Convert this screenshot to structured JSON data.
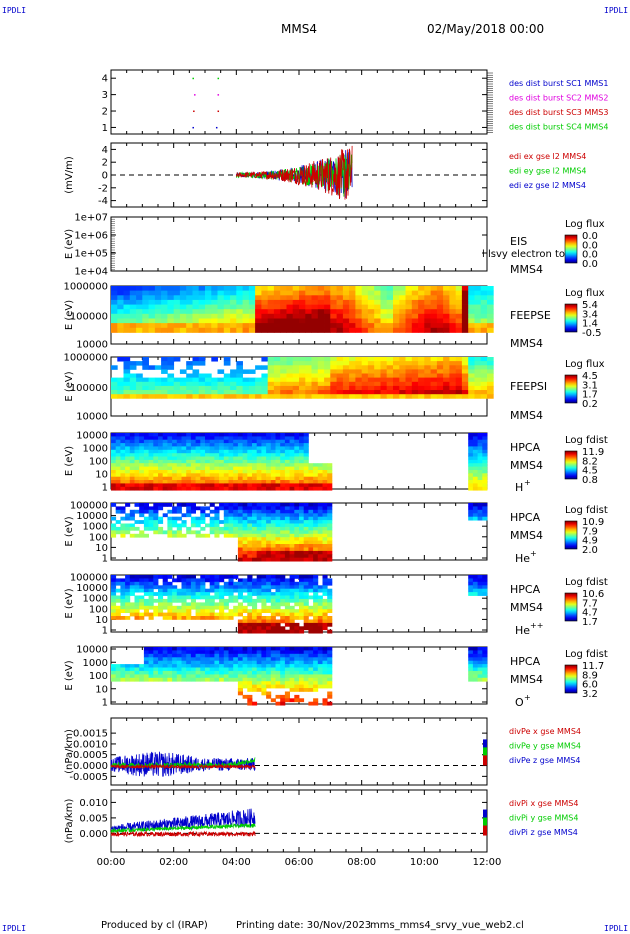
{
  "header": {
    "corner_left_top": "IPDLI",
    "corner_right_top": "IPDLI",
    "corner_left_bottom": "IPDLI",
    "corner_right_bottom": "IPDLI",
    "spacecraft": "MMS4",
    "datetime": "02/May/2018 00:00"
  },
  "footer": {
    "produced_by": "Produced by cl (IRAP)",
    "printing_date": "Printing date: 30/Nov/2023",
    "script_name": "mms_mms4_srvy_vue_web2.cl"
  },
  "colors": {
    "blue": "#0000ff",
    "red": "#e00000",
    "green": "#00cc00",
    "magenta": "#e000e0",
    "darkred": "#cc0000"
  },
  "chart_data": [
    {
      "id": "burst",
      "type": "line",
      "ylabel": "",
      "yticks": [
        "4",
        "3",
        "2",
        "1"
      ],
      "ylim": [
        0.6,
        4.5
      ],
      "legend": [
        {
          "label": "des dist burst SC1 MMS1",
          "color": "#0000cc"
        },
        {
          "label": "des dist burst SC2 MMS2",
          "color": "#e000e0"
        },
        {
          "label": "des dist burst SC3 MMS3",
          "color": "#cc0000"
        },
        {
          "label": "des dist burst SC4 MMS4",
          "color": "#00cc00"
        }
      ],
      "markers": [
        {
          "t": 2.6,
          "y": 4.0,
          "color": "#00cc00"
        },
        {
          "t": 2.65,
          "y": 3.0,
          "color": "#e000e0"
        },
        {
          "t": 2.62,
          "y": 2.0,
          "color": "#cc0000"
        },
        {
          "t": 2.6,
          "y": 1.0,
          "color": "#0000cc"
        },
        {
          "t": 3.4,
          "y": 4.0,
          "color": "#00cc00"
        },
        {
          "t": 3.4,
          "y": 3.0,
          "color": "#e000e0"
        },
        {
          "t": 3.4,
          "y": 2.0,
          "color": "#cc0000"
        },
        {
          "t": 3.35,
          "y": 1.0,
          "color": "#0000cc"
        }
      ]
    },
    {
      "id": "edi",
      "type": "line",
      "ylabel": "(mV/m)",
      "yticks": [
        "4",
        "2",
        "0",
        "-2",
        "-4"
      ],
      "ylim": [
        -5,
        5
      ],
      "legend": [
        {
          "label": "edi ex gse l2 MMS4",
          "color": "#cc0000"
        },
        {
          "label": "edi ey gse l2 MMS4",
          "color": "#00cc00"
        },
        {
          "label": "edi ez gse l2 MMS4",
          "color": "#0000cc"
        }
      ],
      "data_range_hours": [
        4.0,
        7.7
      ],
      "max_amplitude": 4.5
    },
    {
      "id": "eis",
      "type": "heatmap",
      "ylabel": "E (eV)",
      "yticks": [
        "1e+07",
        "1e+06",
        "1e+05",
        "1e+04"
      ],
      "side_labels": [
        "EIS",
        "MMS4"
      ],
      "overlay_text": "l lsvy electron to",
      "colorbar_label": "Log flux",
      "colorbar_values": [
        "0.0",
        "0.0",
        "0.0",
        "0.0"
      ]
    },
    {
      "id": "feepse",
      "type": "heatmap",
      "ylabel": "E (eV)",
      "yticks": [
        "1000000",
        "100000",
        "10000"
      ],
      "side_labels": [
        "FEEPSE",
        "MMS4"
      ],
      "colorbar_label": "Log flux",
      "colorbar_values": [
        "5.4",
        "3.4",
        "1.4",
        "-0.5"
      ]
    },
    {
      "id": "feepsi",
      "type": "heatmap",
      "ylabel": "E (eV)",
      "yticks": [
        "1000000",
        "100000",
        "10000"
      ],
      "side_labels": [
        "FEEPSI",
        "MMS4"
      ],
      "colorbar_label": "Log flux",
      "colorbar_values": [
        "4.5",
        "3.1",
        "1.7",
        "0.2"
      ]
    },
    {
      "id": "hpca_h",
      "type": "heatmap",
      "ylabel": "E (eV)",
      "yticks": [
        "10000",
        "1000",
        "100",
        "10",
        "1"
      ],
      "side_labels": [
        "HPCA",
        "MMS4"
      ],
      "species": "H",
      "species_sup": "+",
      "colorbar_label": "Log fdist",
      "colorbar_values": [
        "11.9",
        "8.2",
        "4.5",
        "0.8"
      ]
    },
    {
      "id": "hpca_he",
      "type": "heatmap",
      "ylabel": "E (eV)",
      "yticks": [
        "100000",
        "10000",
        "1000",
        "100",
        "10",
        "1"
      ],
      "side_labels": [
        "HPCA",
        "MMS4"
      ],
      "species": "He",
      "species_sup": "+",
      "colorbar_label": "Log fdist",
      "colorbar_values": [
        "10.9",
        "7.9",
        "4.9",
        "2.0"
      ]
    },
    {
      "id": "hpca_he2",
      "type": "heatmap",
      "ylabel": "E (eV)",
      "yticks": [
        "100000",
        "10000",
        "1000",
        "100",
        "10",
        "1"
      ],
      "side_labels": [
        "HPCA",
        "MMS4"
      ],
      "species": "He",
      "species_sup": "++",
      "colorbar_label": "Log fdist",
      "colorbar_values": [
        "10.6",
        "7.7",
        "4.7",
        "1.7"
      ]
    },
    {
      "id": "hpca_o",
      "type": "heatmap",
      "ylabel": "E (eV)",
      "yticks": [
        "10000",
        "1000",
        "100",
        "10",
        "1"
      ],
      "side_labels": [
        "HPCA",
        "MMS4"
      ],
      "species": "O",
      "species_sup": "+",
      "colorbar_label": "Log fdist",
      "colorbar_values": [
        "11.7",
        "8.9",
        "6.0",
        "3.2"
      ]
    },
    {
      "id": "divpe",
      "type": "line",
      "ylabel": "(nPa/km)",
      "yticks": [
        "0.0015",
        "0.0010",
        "0.0005",
        "0.0000",
        "-0.0005"
      ],
      "ylim": [
        -0.0009,
        0.0022
      ],
      "legend": [
        {
          "label": "divPe x gse MMS4",
          "color": "#cc0000"
        },
        {
          "label": "divPe y gse MMS4",
          "color": "#00cc00"
        },
        {
          "label": "divPe z gse MMS4",
          "color": "#0000cc"
        }
      ],
      "data_range_hours": [
        0.0,
        4.6
      ]
    },
    {
      "id": "divpi",
      "type": "line",
      "ylabel": "(nPa/km)",
      "yticks": [
        "0.010",
        "0.005",
        "0.000"
      ],
      "ylim": [
        -0.006,
        0.014
      ],
      "legend": [
        {
          "label": "divPi x gse MMS4",
          "color": "#cc0000"
        },
        {
          "label": "divPi y gse MMS4",
          "color": "#00cc00"
        },
        {
          "label": "divPi z gse MMS4",
          "color": "#0000cc"
        }
      ],
      "data_range_hours": [
        0.0,
        4.6
      ]
    }
  ],
  "xaxis": {
    "range_hours": [
      0,
      12
    ],
    "tick_labels": [
      "00:00",
      "02:00",
      "04:00",
      "06:00",
      "08:00",
      "10:00",
      "12:00"
    ]
  }
}
